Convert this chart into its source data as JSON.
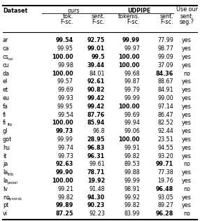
{
  "rows": [
    [
      "ar",
      "99.54",
      "92.75",
      "99.99",
      "77.99",
      "yes"
    ],
    [
      "ca",
      "99.95",
      "99.01",
      "99.97",
      "98.77",
      "yes"
    ],
    [
      "cs_cac",
      "100.00",
      "99.5",
      "100.00",
      "99.09",
      "yes"
    ],
    [
      "cu",
      "99.98",
      "39.44",
      "100.00",
      "37.09",
      "yes"
    ],
    [
      "da",
      "100.00",
      "84.01",
      "99.68",
      "84.36",
      "no"
    ],
    [
      "el",
      "99.57",
      "92.61",
      "99.87",
      "88.67",
      "yes"
    ],
    [
      "et",
      "99.69",
      "90.82",
      "99.79",
      "84.91",
      "yes"
    ],
    [
      "eu",
      "99.93",
      "99.42",
      "99.99",
      "99.00",
      "yes"
    ],
    [
      "fa",
      "99.95",
      "99.42",
      "100.00",
      "97.14",
      "yes"
    ],
    [
      "fi",
      "99.54",
      "87.76",
      "99.69",
      "86.47",
      "yes"
    ],
    [
      "fi_ftb",
      "100.00",
      "85.94",
      "99.94",
      "82.52",
      "yes"
    ],
    [
      "gl",
      "99.73",
      "96.8",
      "99.06",
      "92.44",
      "yes"
    ],
    [
      "got",
      "99.99",
      "28.95",
      "100.00",
      "23.51",
      "yes"
    ],
    [
      "hu",
      "99.74",
      "96.83",
      "99.91",
      "94.55",
      "yes"
    ],
    [
      "it",
      "99.73",
      "96.31",
      "99.82",
      "93.20",
      "yes"
    ],
    [
      "ja",
      "92.63",
      "99.61",
      "89.53",
      "99.71",
      "no"
    ],
    [
      "la_ittb",
      "99.90",
      "78.71",
      "99.88",
      "77.38",
      "yes"
    ],
    [
      "la_proiel",
      "100.00",
      "19.92",
      "99.99",
      "19.76",
      "yes"
    ],
    [
      "lv",
      "99.21",
      "91.48",
      "98.91",
      "96.48",
      "no"
    ],
    [
      "no_nynorsk",
      "99.82",
      "94.30",
      "99.92",
      "93.05",
      "yes"
    ],
    [
      "pt",
      "99.89",
      "90.23",
      "99.82",
      "89.27",
      "yes"
    ],
    [
      "vi",
      "87.25",
      "92.23",
      "83.99",
      "96.28",
      "no"
    ]
  ],
  "bold_cells": {
    "0": [
      1,
      2,
      3
    ],
    "1": [
      2
    ],
    "2": [
      1,
      2,
      3
    ],
    "3": [
      2,
      3
    ],
    "4": [
      1,
      4
    ],
    "5": [
      2
    ],
    "6": [
      2
    ],
    "7": [
      2
    ],
    "8": [
      2,
      3
    ],
    "9": [
      2
    ],
    "10": [
      1,
      2
    ],
    "11": [
      1
    ],
    "12": [
      2,
      3
    ],
    "13": [
      2
    ],
    "14": [
      2
    ],
    "15": [
      1,
      4
    ],
    "16": [
      1,
      2
    ],
    "17": [
      1,
      2
    ],
    "18": [
      4
    ],
    "19": [
      2
    ],
    "20": [
      1,
      2
    ],
    "21": [
      1,
      4
    ]
  },
  "dataset_subs": {
    "cs_cac": {
      "base": "cs",
      "sub": "cac"
    },
    "fi_ftb": {
      "base": "fi",
      "sub": "ftb"
    },
    "la_ittb": {
      "base": "la",
      "sub": "ittb"
    },
    "la_proiel": {
      "base": "la",
      "sub": "proiel"
    },
    "no_nynorsk": {
      "base": "no",
      "sub": "nynorsk"
    }
  }
}
